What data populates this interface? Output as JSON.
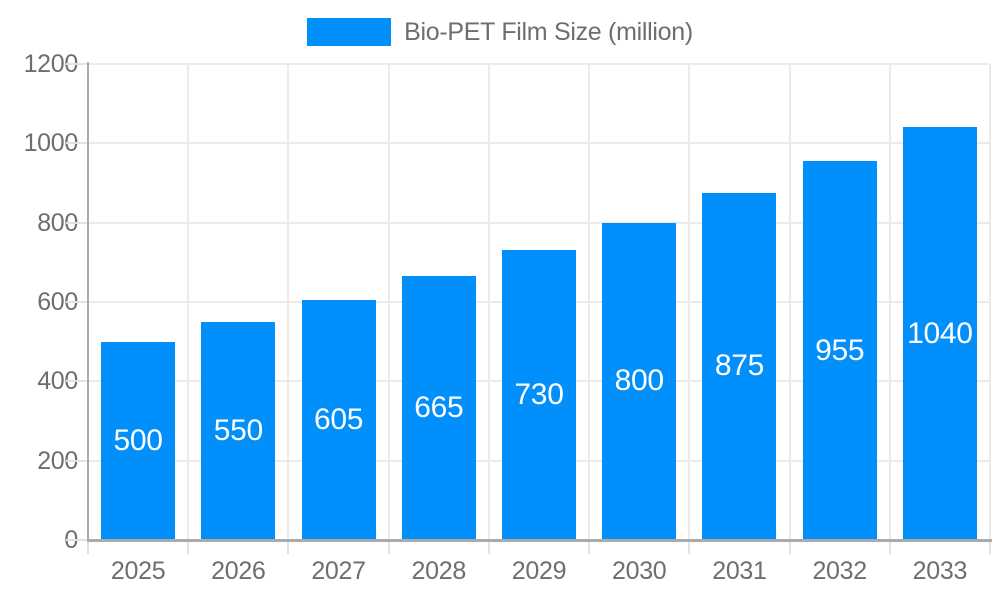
{
  "legend": {
    "label": "Bio-PET Film Size (million)"
  },
  "chart_data": {
    "type": "bar",
    "title": "",
    "categories": [
      "2025",
      "2026",
      "2027",
      "2028",
      "2029",
      "2030",
      "2031",
      "2032",
      "2033"
    ],
    "series": [
      {
        "name": "Bio-PET Film Size (million)",
        "values": [
          500,
          550,
          605,
          665,
          730,
          800,
          875,
          955,
          1040
        ]
      }
    ],
    "value_label_position": "inside-center",
    "xlabel": "",
    "ylabel": "",
    "ylim": [
      0,
      1200
    ],
    "ytick_step": 200,
    "y_ticks": [
      0,
      200,
      400,
      600,
      800,
      1000,
      1200
    ],
    "grid": true,
    "legend_position": "top-center",
    "colors": {
      "bar": "#008FFB",
      "value_label": "#FFFFFF",
      "axis_label": "#6E6E6E",
      "legend_label": "#6E6E6E",
      "axis_line": "#ABABAB",
      "gridline": "#EBEBEB",
      "tick": "#E2E2E2",
      "background": "#FFFFFF"
    }
  }
}
